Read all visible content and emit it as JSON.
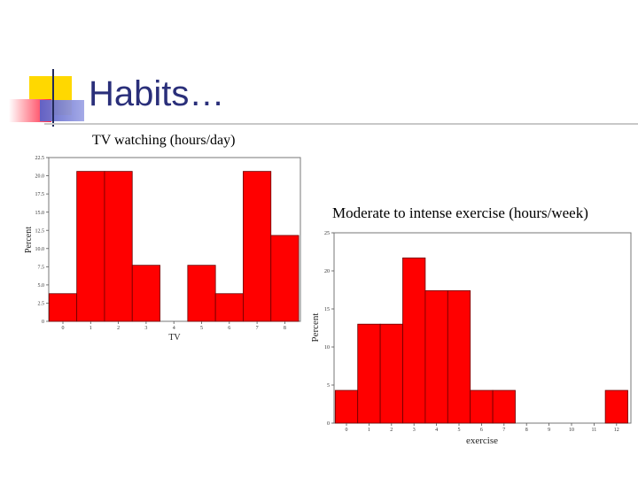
{
  "slide": {
    "title": "Habits…",
    "colors": {
      "title": "#2a2f7a",
      "accent_yellow": "#ffd800",
      "accent_red": "#ff2040",
      "accent_blue": "#5a62c8"
    }
  },
  "chart_data": [
    {
      "type": "bar",
      "title": "TV watching (hours/day)",
      "xlabel": "TV",
      "ylabel": "Percent",
      "categories": [
        "0",
        "1",
        "2",
        "3",
        "4",
        "5",
        "6",
        "7",
        "8"
      ],
      "values": [
        3.8,
        20.6,
        20.6,
        7.7,
        0,
        7.7,
        3.8,
        20.6,
        11.8
      ],
      "y_ticks": [
        "0",
        "2.5",
        "5.0",
        "7.5",
        "10.0",
        "12.5",
        "15.0",
        "17.5",
        "20.0",
        "22.5"
      ],
      "ylim": [
        0,
        22.5
      ],
      "bar_color": "#ff0000",
      "grid": false,
      "legend": "none"
    },
    {
      "type": "bar",
      "title": "Moderate to intense exercise (hours/week)",
      "xlabel": "exercise",
      "ylabel": "Percent",
      "categories": [
        "0",
        "1",
        "2",
        "3",
        "4",
        "5",
        "6",
        "7",
        "8",
        "9",
        "10",
        "11",
        "12"
      ],
      "values": [
        4.3,
        13.0,
        13.0,
        21.7,
        17.4,
        17.4,
        4.3,
        4.3,
        0,
        0,
        0,
        0,
        4.3
      ],
      "y_ticks": [
        "0",
        "5",
        "10",
        "15",
        "20",
        "25"
      ],
      "ylim": [
        0,
        25
      ],
      "bar_color": "#ff0000",
      "grid": false,
      "legend": "none"
    }
  ]
}
